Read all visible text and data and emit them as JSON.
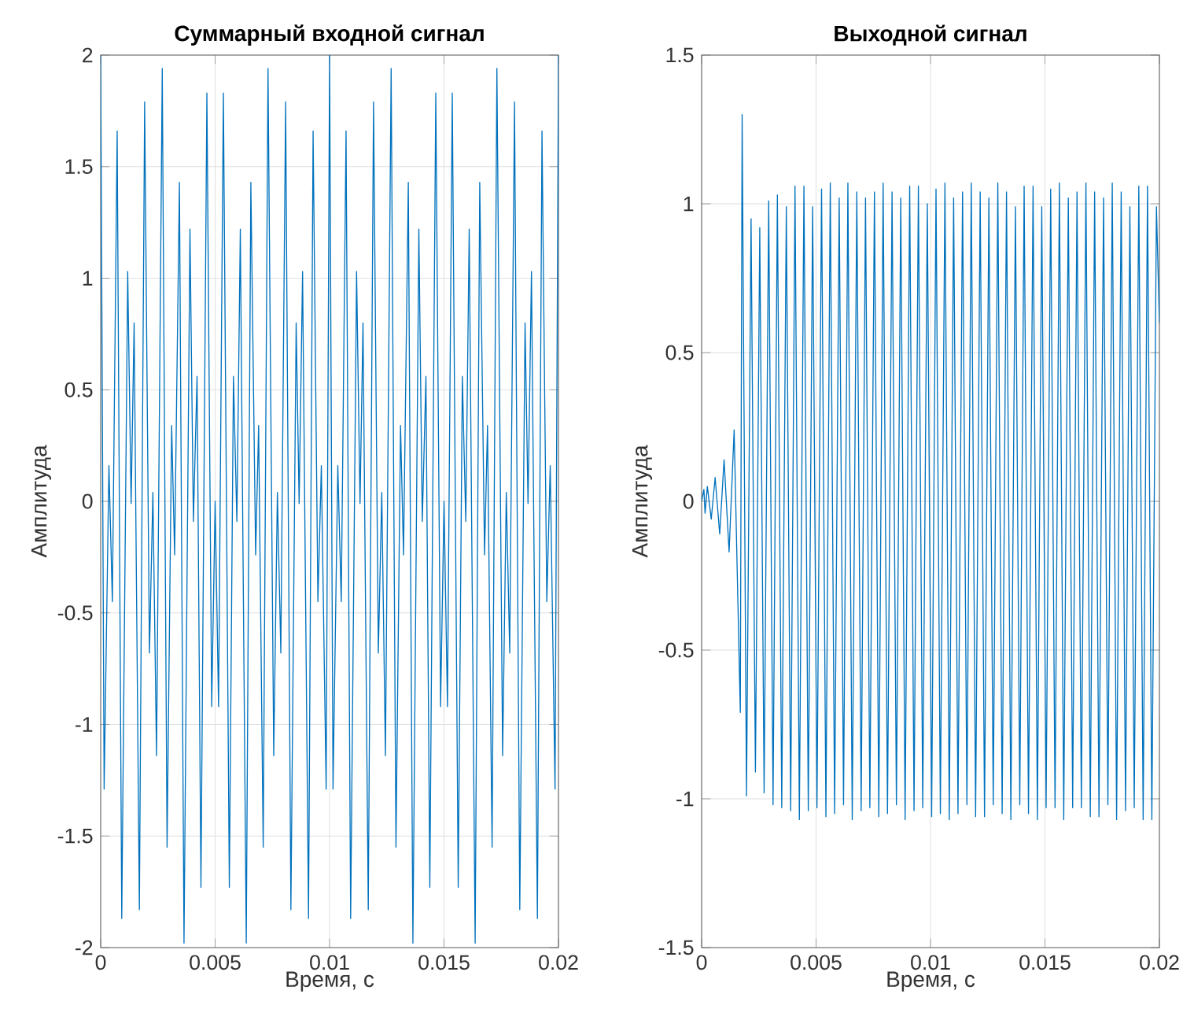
{
  "chart_data": [
    {
      "type": "line",
      "title": "Суммарный входной сигнал",
      "xlabel": "Время, с",
      "ylabel": "Амплитуда",
      "color": "#0072bd",
      "grid": true,
      "xlim": [
        0,
        0.02
      ],
      "ylim": [
        -2,
        2
      ],
      "xticks": [
        0,
        0.005,
        0.01,
        0.015,
        0.02
      ],
      "yticks": [
        -2,
        -1.5,
        -1,
        -0.5,
        0,
        0.5,
        1,
        1.5,
        2
      ],
      "x": [
        0,
        0.00015,
        0.00036,
        0.00051,
        0.00072,
        0.00092,
        0.00118,
        0.00133,
        0.00146,
        0.00169,
        0.00192,
        0.00213,
        0.00228,
        0.00244,
        0.00269,
        0.0029,
        0.0031,
        0.00323,
        0.00344,
        0.00364,
        0.0039,
        0.00405,
        0.00421,
        0.00438,
        0.00464,
        0.00485,
        0.005,
        0.00515,
        0.00536,
        0.00562,
        0.0058,
        0.00595,
        0.0061,
        0.00636,
        0.00656,
        0.00677,
        0.0069,
        0.0071,
        0.00731,
        0.00756,
        0.00772,
        0.00787,
        0.00808,
        0.00831,
        0.00854,
        0.00867,
        0.00882,
        0.00908,
        0.00928,
        0.00949,
        0.00964,
        0.00985,
        0.01,
        0.01015,
        0.01036,
        0.01051,
        0.01072,
        0.01092,
        0.01118,
        0.01133,
        0.01146,
        0.01169,
        0.01192,
        0.01213,
        0.01228,
        0.01244,
        0.01269,
        0.0129,
        0.0131,
        0.01323,
        0.01344,
        0.01364,
        0.0139,
        0.01405,
        0.01421,
        0.01438,
        0.01464,
        0.01485,
        0.015,
        0.01515,
        0.01536,
        0.01562,
        0.0158,
        0.01595,
        0.0161,
        0.01636,
        0.01656,
        0.01677,
        0.0169,
        0.0171,
        0.01731,
        0.01756,
        0.01772,
        0.01787,
        0.01808,
        0.01831,
        0.01854,
        0.01867,
        0.01882,
        0.01908,
        0.01928,
        0.01949,
        0.01964,
        0.01985,
        0.02
      ],
      "values": [
        2,
        -1.29,
        0.16,
        -0.45,
        1.66,
        -1.87,
        1.03,
        -0.01,
        0.8,
        -1.83,
        1.79,
        -0.68,
        0.04,
        -1.14,
        1.94,
        -1.55,
        0.34,
        -0.24,
        1.43,
        -1.98,
        1.22,
        -0.09,
        0.56,
        -1.73,
        1.83,
        -0.92,
        0,
        -0.92,
        1.83,
        -1.73,
        0.56,
        -0.09,
        1.22,
        -1.98,
        1.43,
        -0.24,
        0.34,
        -1.55,
        1.94,
        -1.14,
        0.04,
        -0.68,
        1.79,
        -1.83,
        0.8,
        -0.01,
        1.03,
        -1.87,
        1.66,
        -0.45,
        0.16,
        -1.29,
        2,
        -1.29,
        0.16,
        -0.45,
        1.66,
        -1.87,
        1.03,
        -0.01,
        0.8,
        -1.83,
        1.79,
        -0.68,
        0.04,
        -1.14,
        1.94,
        -1.55,
        0.34,
        -0.24,
        1.43,
        -1.98,
        1.22,
        -0.09,
        0.56,
        -1.73,
        1.83,
        -0.92,
        0,
        -0.92,
        1.83,
        -1.73,
        0.56,
        -0.09,
        1.22,
        -1.98,
        1.43,
        -0.24,
        0.34,
        -1.55,
        1.94,
        -1.14,
        0.04,
        -0.68,
        1.79,
        -1.83,
        0.8,
        -0.01,
        1.03,
        -1.87,
        1.66,
        -0.45,
        0.16,
        -1.29,
        2
      ]
    },
    {
      "type": "line",
      "title": "Выходной сигнал",
      "xlabel": "Время, с",
      "ylabel": "Амплитуда",
      "color": "#0072bd",
      "grid": true,
      "xlim": [
        0,
        0.02
      ],
      "ylim": [
        -1.5,
        1.5
      ],
      "xticks": [
        0,
        0.005,
        0.01,
        0.015,
        0.02
      ],
      "yticks": [
        -1.5,
        -1,
        -0.5,
        0,
        0.5,
        1,
        1.5
      ],
      "x": [
        0,
        0.0001,
        0.00015,
        0.00025,
        0.00042,
        0.00059,
        0.00079,
        0.00098,
        0.0012,
        0.00142,
        0.00169,
        0.00177,
        0.00196,
        0.00216,
        0.00235,
        0.00254,
        0.00273,
        0.00293,
        0.00312,
        0.00331,
        0.0035,
        0.0037,
        0.00389,
        0.00408,
        0.00427,
        0.00447,
        0.00466,
        0.00485,
        0.00504,
        0.00524,
        0.00543,
        0.00562,
        0.00581,
        0.00601,
        0.0062,
        0.00639,
        0.00658,
        0.00678,
        0.00697,
        0.00716,
        0.00735,
        0.00755,
        0.00774,
        0.00793,
        0.00812,
        0.00832,
        0.00851,
        0.0087,
        0.00889,
        0.00909,
        0.00928,
        0.00947,
        0.00966,
        0.00986,
        0.01005,
        0.01024,
        0.01043,
        0.01063,
        0.01082,
        0.01101,
        0.0112,
        0.0114,
        0.01159,
        0.01178,
        0.01197,
        0.01217,
        0.01236,
        0.01255,
        0.01274,
        0.01294,
        0.01313,
        0.01332,
        0.01351,
        0.01371,
        0.0139,
        0.01409,
        0.01428,
        0.01448,
        0.01467,
        0.01486,
        0.01505,
        0.01525,
        0.01544,
        0.01563,
        0.01582,
        0.01602,
        0.01621,
        0.0164,
        0.01659,
        0.01679,
        0.01698,
        0.01717,
        0.01736,
        0.01756,
        0.01775,
        0.01794,
        0.01813,
        0.01833,
        0.01852,
        0.01871,
        0.0189,
        0.0191,
        0.01929,
        0.01948,
        0.01967,
        0.01987,
        0.02
      ],
      "values": [
        0,
        0.04,
        -0.04,
        0.05,
        -0.06,
        0.08,
        -0.11,
        0.14,
        -0.17,
        0.24,
        -0.71,
        1.3,
        -0.99,
        0.95,
        -0.91,
        0.92,
        -0.98,
        1.01,
        -1.02,
        1.03,
        -1.03,
        0.99,
        -1.04,
        1.06,
        -1.07,
        1.06,
        -1.04,
        0.99,
        -1.03,
        1.05,
        -1.06,
        1.07,
        -1.05,
        1.02,
        -1.02,
        1.07,
        -1.07,
        1.04,
        -1.04,
        1.02,
        -1.03,
        1.04,
        -1.06,
        1.07,
        -1.05,
        1.04,
        -1.02,
        1.02,
        -1.07,
        1.06,
        -1.04,
        1.06,
        -1.03,
        1.0,
        -1.06,
        1.05,
        -1.05,
        1.07,
        -1.07,
        1.02,
        -1.05,
        1.04,
        -1.02,
        1.07,
        -1.06,
        1.04,
        -1.06,
        1.02,
        -1.02,
        1.07,
        -1.05,
        1.04,
        -1.07,
        0.99,
        -1.02,
        1.06,
        -1.05,
        1.06,
        -1.07,
        0.99,
        -1.03,
        1.05,
        -1.03,
        1.07,
        -1.07,
        1.02,
        -1.03,
        1.04,
        -1.03,
        1.07,
        -1.06,
        1.04,
        -1.06,
        1.02,
        -1.02,
        1.07,
        -1.07,
        1.04,
        -1.04,
        0.99,
        -1.03,
        1.06,
        -1.07,
        1.06,
        -1.07,
        0.99,
        0.6
      ]
    }
  ]
}
